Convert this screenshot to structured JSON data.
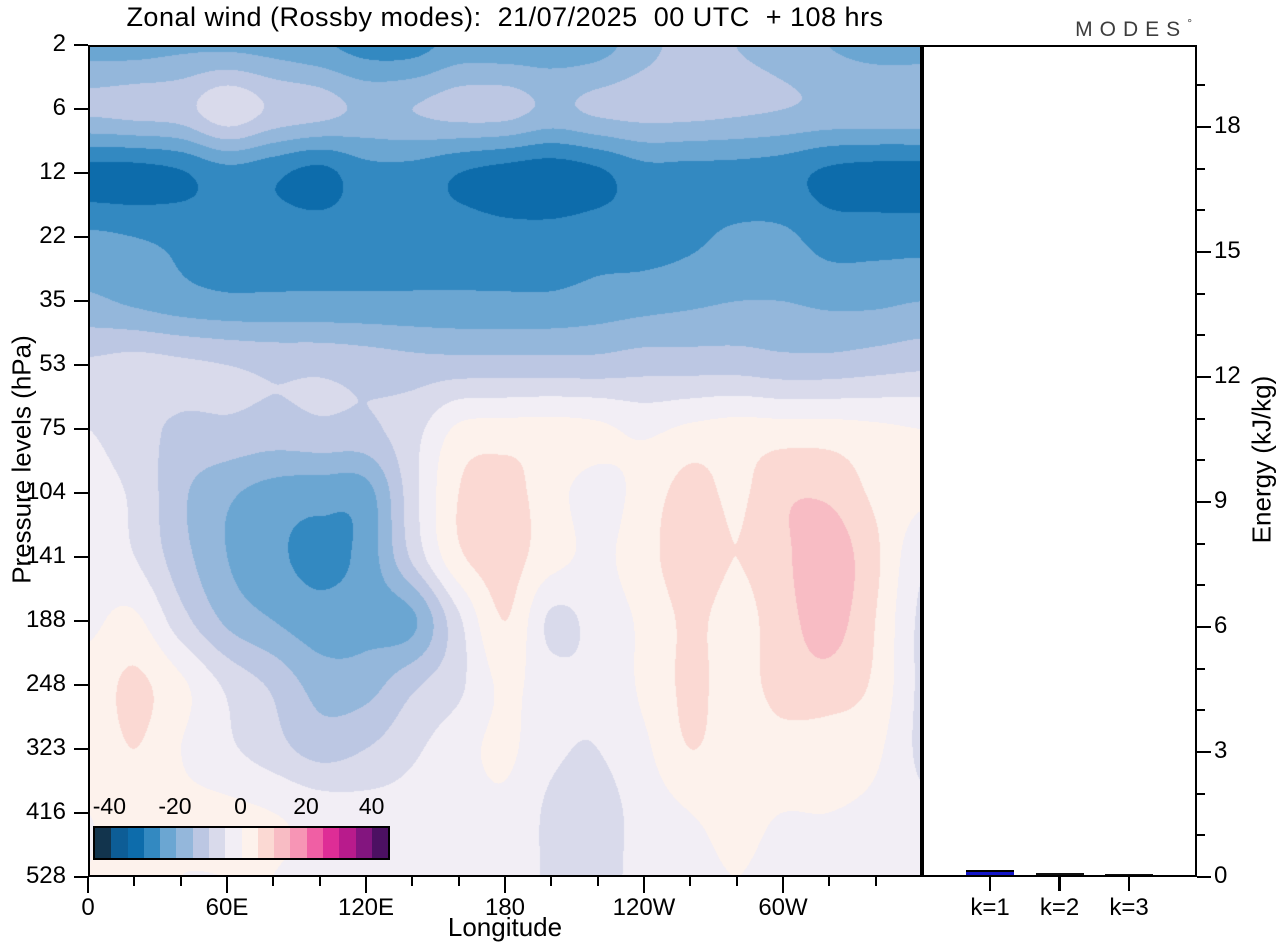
{
  "title": "Zonal wind (Rossby modes):  21/07/2025  00 UTC  + 108 hrs",
  "watermark": {
    "text": "MODES",
    "symbol": "°"
  },
  "axes": {
    "y": {
      "label": "Pressure levels (hPa)",
      "tick_labels": [
        "2",
        "6",
        "12",
        "22",
        "35",
        "53",
        "75",
        "104",
        "141",
        "188",
        "248",
        "323",
        "416",
        "528"
      ]
    },
    "x": {
      "label": "Longitude",
      "major_ticks": [
        {
          "deg": 0,
          "label": "0"
        },
        {
          "deg": 60,
          "label": "60E"
        },
        {
          "deg": 120,
          "label": "120E"
        },
        {
          "deg": 180,
          "label": "180"
        },
        {
          "deg": 240,
          "label": "120W"
        },
        {
          "deg": 300,
          "label": "60W"
        }
      ],
      "minor_tick_degs": [
        20,
        40,
        80,
        100,
        140,
        160,
        200,
        220,
        260,
        280,
        320,
        340
      ]
    },
    "right": {
      "label": "Energy (kJ/kg)",
      "major_tick_values": [
        0,
        3,
        6,
        9,
        12,
        15,
        18
      ],
      "minor_tick_values": [
        1,
        2,
        4,
        5,
        7,
        8,
        10,
        11,
        13,
        14,
        16,
        17,
        19
      ],
      "axis_top_value": 19.97
    }
  },
  "colorbar": {
    "vmin": -45,
    "vmax": 45,
    "interval": 5,
    "tick_values": [
      -40,
      -20,
      0,
      20,
      40
    ],
    "tick_labels": [
      "-40",
      "-20",
      "0",
      "20",
      "40"
    ],
    "colors": [
      "#12344d",
      "#0d5d96",
      "#0d6cab",
      "#3389c1",
      "#6ba6d2",
      "#94b7db",
      "#bcc7e3",
      "#d9daeb",
      "#f2eef5",
      "#fdf2ec",
      "#fbd9d3",
      "#f8bcc4",
      "#f795b5",
      "#f05fa4",
      "#de2d96",
      "#b81b8c",
      "#83157f",
      "#4c1062"
    ]
  },
  "energy_panel": {
    "bars": [
      {
        "label": "k=1",
        "value_kj_per_kg": 0.12,
        "color": "#1315c9"
      },
      {
        "label": "k=2",
        "value_kj_per_kg": 0.06,
        "color": "#101010"
      },
      {
        "label": "k=3",
        "value_kj_per_kg": 0.015,
        "color": "#101010"
      }
    ]
  },
  "chart_data": {
    "type": "heatmap",
    "subtype": "filled-contour",
    "title": "Zonal wind (Rossby modes): 21/07/2025 00 UTC + 108 hrs",
    "xlabel": "Longitude",
    "ylabel": "Pressure levels (hPa)",
    "legend_position": "colorbar-bottom-left",
    "contour_interval": 5,
    "value_range": [
      -45,
      45
    ],
    "lon_deg": [
      0,
      20,
      40,
      60,
      80,
      100,
      120,
      140,
      160,
      180,
      200,
      220,
      240,
      260,
      280,
      300,
      320,
      340,
      360
    ],
    "pressure_hpa": [
      2,
      6,
      12,
      22,
      35,
      53,
      75,
      104,
      141,
      188,
      248,
      323,
      416,
      528
    ],
    "u_values": [
      [
        -22,
        -22,
        -21,
        -21,
        -22,
        -24,
        -27,
        -27,
        -23,
        -23,
        -23,
        -22,
        -17,
        -13,
        -15,
        -17,
        -20,
        -22,
        -22
      ],
      [
        -14,
        -13,
        -12,
        -6.5,
        -11,
        -13,
        -16,
        -15,
        -13,
        -13,
        -16,
        -14,
        -13,
        -13,
        -14,
        -15,
        -16,
        -16,
        -16
      ],
      [
        -32,
        -32,
        -30.5,
        -27,
        -29,
        -31.5,
        -27,
        -27,
        -30,
        -32,
        -33,
        -31,
        -27,
        -27,
        -27,
        -28,
        -31,
        -32,
        -32
      ],
      [
        -24,
        -25,
        -26,
        -27,
        -27,
        -27,
        -27,
        -27,
        -27,
        -28,
        -28,
        -27,
        -27,
        -26,
        -24,
        -24,
        -27,
        -27,
        -27
      ],
      [
        -19,
        -21,
        -23,
        -24,
        -24,
        -24,
        -24,
        -24,
        -24,
        -24,
        -24,
        -23,
        -22,
        -21,
        -20,
        -20,
        -21,
        -21,
        -20
      ],
      [
        -9,
        -8,
        -9,
        -10,
        -11,
        -11,
        -12,
        -13,
        -13,
        -13,
        -13,
        -13,
        -12,
        -12,
        -12,
        -13,
        -13,
        -12,
        -11
      ],
      [
        -5,
        -8,
        -11,
        -11,
        -12,
        -11,
        -11,
        -7,
        1,
        2,
        2,
        1,
        -1,
        1,
        2,
        2,
        2,
        1,
        0
      ],
      [
        -3,
        -6,
        -14,
        -19,
        -22,
        -23,
        -22,
        -7,
        5,
        7,
        2,
        -2,
        2,
        7,
        4,
        9,
        9,
        4,
        1
      ],
      [
        -2,
        -5,
        -13,
        -20,
        -24,
        -26,
        -23,
        -9,
        4,
        7,
        2,
        -1,
        3,
        8,
        5,
        9,
        13,
        6,
        -4
      ],
      [
        -1,
        1,
        -8,
        -16,
        -20,
        -23,
        -22,
        -21,
        -6,
        5,
        -6,
        -3,
        1,
        6,
        3,
        8,
        12,
        5,
        -6
      ],
      [
        2,
        6,
        1,
        -6,
        -11,
        -17,
        -17,
        -11,
        -6,
        1,
        -3,
        -4,
        1,
        6,
        3,
        7,
        8,
        4,
        -6
      ],
      [
        1,
        5,
        0,
        -4,
        -8,
        -12,
        -10,
        -6,
        -2,
        1,
        -4,
        -5,
        -1,
        5,
        2,
        3,
        2,
        1,
        -6
      ],
      [
        0,
        1,
        1,
        1,
        0,
        -2,
        -3,
        -3,
        -2,
        -1,
        -6,
        -7,
        -3,
        0,
        1,
        0,
        0,
        -1,
        -4
      ],
      [
        0,
        1,
        0,
        0,
        0,
        -1,
        -2,
        -2,
        -1,
        -1,
        -6,
        -7,
        -3,
        -1,
        0,
        -1,
        -2,
        -2,
        -3
      ]
    ],
    "energy_bars": {
      "categories": [
        "k=1",
        "k=2",
        "k=3"
      ],
      "values": [
        0.12,
        0.06,
        0.015
      ],
      "ylabel": "Energy (kJ/kg)",
      "ylim": [
        0,
        19.97
      ]
    }
  }
}
